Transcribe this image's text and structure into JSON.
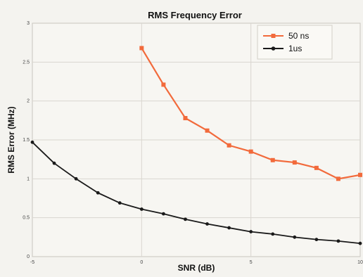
{
  "chart_data": {
    "type": "line",
    "title": "RMS Frequency Error",
    "xlabel": "SNR (dB)",
    "ylabel": "RMS Error (MHz)",
    "xlim": [
      -5,
      10
    ],
    "ylim": [
      0,
      3
    ],
    "grid": true,
    "legend_position": "top-right",
    "x_ticks": [
      -5,
      0,
      5,
      10
    ],
    "x_tick_labels": [
      "-5",
      "0",
      "5",
      "10"
    ],
    "y_ticks": [
      0,
      0.5,
      1,
      1.5,
      2,
      2.5,
      3
    ],
    "y_tick_labels": [
      "0",
      "0.5",
      "1",
      "1.5",
      "2",
      "2.5",
      "3"
    ],
    "series": [
      {
        "name": "50 ns",
        "color": "#f26a3b",
        "x": [
          0,
          1,
          2,
          3,
          4,
          5,
          6,
          7,
          8,
          9,
          10
        ],
        "y": [
          2.68,
          2.21,
          1.78,
          1.62,
          1.43,
          1.35,
          1.24,
          1.21,
          1.14,
          1.0,
          1.05
        ]
      },
      {
        "name": "1us",
        "color": "#1a1a1a",
        "x": [
          -5,
          -4,
          -3,
          -2,
          -1,
          0,
          1,
          2,
          3,
          4,
          5,
          6,
          7,
          8,
          9,
          10
        ],
        "y": [
          1.47,
          1.2,
          1.0,
          0.82,
          0.69,
          0.61,
          0.55,
          0.48,
          0.42,
          0.37,
          0.32,
          0.29,
          0.25,
          0.22,
          0.2,
          0.17
        ]
      }
    ]
  }
}
